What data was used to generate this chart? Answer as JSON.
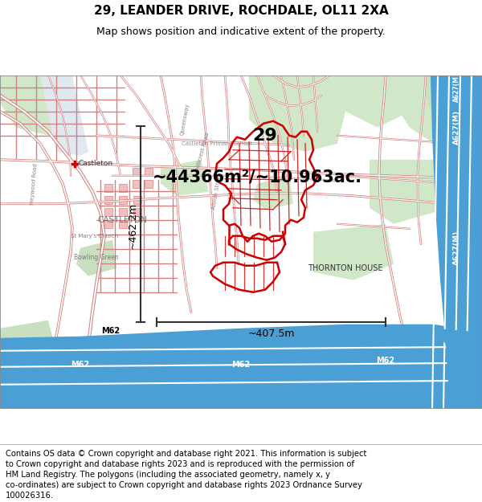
{
  "title_line1": "29, LEANDER DRIVE, ROCHDALE, OL11 2XA",
  "title_line2": "Map shows position and indicative extent of the property.",
  "annotation_area": "~44366m²/~10.963ac.",
  "annotation_distance1": "~462.2m",
  "annotation_distance2": "~407.5m",
  "annotation_number": "29",
  "footer_text": "Contains OS data © Crown copyright and database right 2021. This information is subject to Crown copyright and database rights 2023 and is reproduced with the permission of HM Land Registry. The polygons (including the associated geometry, namely x, y co-ordinates) are subject to Crown copyright and database rights 2023 Ordnance Survey 100026316.",
  "title_fontsize": 11,
  "subtitle_fontsize": 9,
  "annotation_area_fontsize": 15,
  "annotation_dist_fontsize": 9,
  "annotation_num_fontsize": 16,
  "footer_fontsize": 7.2,
  "fig_width": 6.0,
  "fig_height": 6.25,
  "map_bg": "#ffffff",
  "road_outline_color": "#d48080",
  "road_fill_color": "#f5d0d0",
  "motorway_color": "#4a9fd4",
  "motorway_text_color": "#ffffff",
  "green_color": "#d0e8c8",
  "green_color2": "#c8dfc0",
  "property_color": "#cc0000",
  "scale_bar_color": "#333333",
  "label_color": "#666666",
  "label_dark": "#333333"
}
